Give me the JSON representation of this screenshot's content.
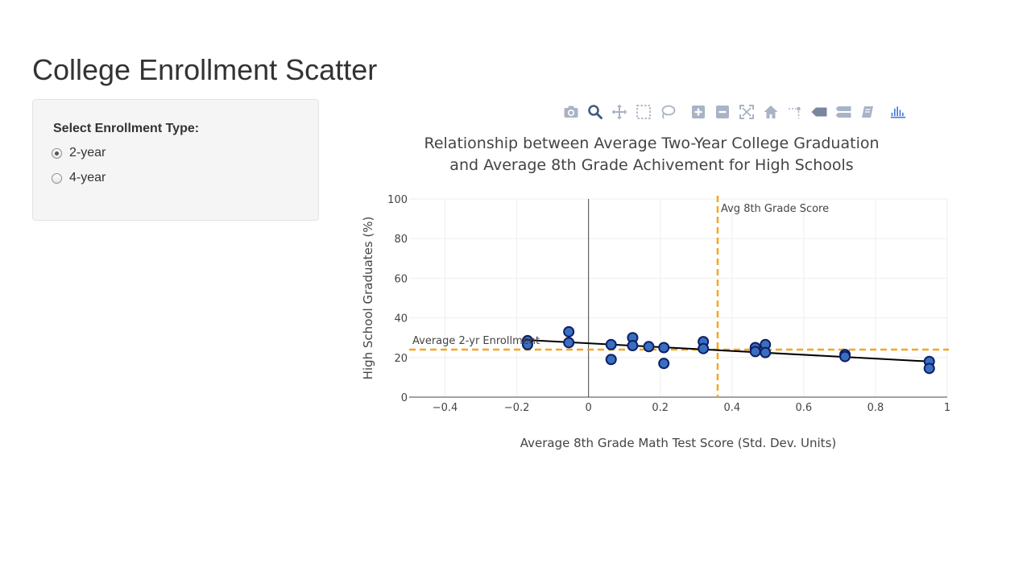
{
  "app": {
    "title": "College Enrollment Scatter"
  },
  "sidebar": {
    "control_label": "Select Enrollment Type:",
    "options": [
      {
        "label": "2-year",
        "selected": true
      },
      {
        "label": "4-year",
        "selected": false
      }
    ]
  },
  "modebar": {
    "buttons": [
      {
        "icon": "camera-icon"
      },
      {
        "icon": "zoom-icon",
        "active": true
      },
      {
        "icon": "pan-icon"
      },
      {
        "icon": "box-select-icon"
      },
      {
        "icon": "lasso-select-icon"
      },
      {
        "icon": "zoom-in-icon"
      },
      {
        "icon": "zoom-out-icon"
      },
      {
        "icon": "autoscale-icon"
      },
      {
        "icon": "reset-axes-icon"
      },
      {
        "icon": "spike-lines-icon"
      },
      {
        "icon": "hover-closest-icon"
      },
      {
        "icon": "hover-compare-icon"
      },
      {
        "icon": "edit-chart-icon"
      },
      {
        "icon": "plotly-logo-icon"
      }
    ]
  },
  "colors": {
    "marker_fill": "#3a6fc0",
    "marker_stroke": "#0d1f66",
    "reference_line": "#f5a623",
    "fit_line": "#000000",
    "modebar_icon": "#a9b3c6",
    "modebar_active": "#445a80",
    "plotly_logo": "#447adb"
  },
  "chart_data": {
    "type": "scatter",
    "title_lines": [
      "Relationship between Average Two-Year College Graduation",
      "and Average 8th Grade Achivement for High Schools"
    ],
    "xlabel": "Average 8th Grade Math Test Score (Std. Dev. Units)",
    "ylabel": "High School Graduates (%)",
    "xlim": [
      -0.5,
      1.0
    ],
    "ylim": [
      0,
      100
    ],
    "x_ticks": [
      {
        "value": -0.4,
        "label": "−0.4"
      },
      {
        "value": -0.2,
        "label": "−0.2"
      },
      {
        "value": 0,
        "label": "0"
      },
      {
        "value": 0.2,
        "label": "0.2"
      },
      {
        "value": 0.4,
        "label": "0.4"
      },
      {
        "value": 0.6,
        "label": "0.6"
      },
      {
        "value": 0.8,
        "label": "0.8"
      },
      {
        "value": 1,
        "label": "1"
      }
    ],
    "y_ticks": [
      {
        "value": 0,
        "label": "0"
      },
      {
        "value": 20,
        "label": "20"
      },
      {
        "value": 40,
        "label": "40"
      },
      {
        "value": 60,
        "label": "60"
      },
      {
        "value": 80,
        "label": "80"
      },
      {
        "value": 100,
        "label": "100"
      }
    ],
    "grid": true,
    "zero_line_x": true,
    "points": [
      {
        "x": -0.17,
        "y": 28.5
      },
      {
        "x": -0.17,
        "y": 26.5
      },
      {
        "x": -0.055,
        "y": 33
      },
      {
        "x": -0.055,
        "y": 27.5
      },
      {
        "x": 0.063,
        "y": 26.5
      },
      {
        "x": 0.063,
        "y": 19
      },
      {
        "x": 0.123,
        "y": 30
      },
      {
        "x": 0.123,
        "y": 26
      },
      {
        "x": 0.168,
        "y": 25.5
      },
      {
        "x": 0.21,
        "y": 25
      },
      {
        "x": 0.21,
        "y": 17
      },
      {
        "x": 0.32,
        "y": 28
      },
      {
        "x": 0.32,
        "y": 24.5
      },
      {
        "x": 0.465,
        "y": 25
      },
      {
        "x": 0.465,
        "y": 23
      },
      {
        "x": 0.493,
        "y": 26.5
      },
      {
        "x": 0.493,
        "y": 22.5
      },
      {
        "x": 0.715,
        "y": 21.5
      },
      {
        "x": 0.715,
        "y": 20.5
      },
      {
        "x": 0.95,
        "y": 18
      },
      {
        "x": 0.95,
        "y": 14.5
      }
    ],
    "fit_line": {
      "x": [
        -0.17,
        0.95
      ],
      "y": [
        28.8,
        18.0
      ]
    },
    "reference_lines": {
      "vertical_x": 0.36,
      "horizontal_y": 24
    },
    "annotations": {
      "vertical_label": "Avg 8th Grade Score",
      "horizontal_label": "Average 2-yr Enrollment"
    }
  }
}
